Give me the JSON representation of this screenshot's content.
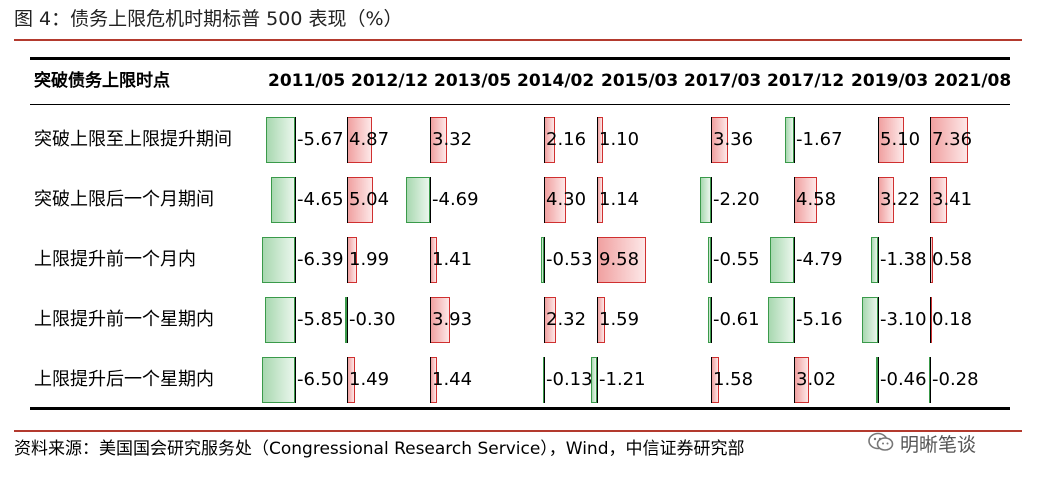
{
  "title": "图 4：债务上限危机时期标普 500 表现（%）",
  "source": "资料来源：美国国会研究服务处（Congressional Research Service），Wind，中信证券研究部",
  "watermark": "明晰笔谈",
  "colors": {
    "positive": "#d03030",
    "negative": "#3a9a4a",
    "rule": "#b33a2e"
  },
  "chart_data": {
    "type": "table",
    "header_label": "突破债务上限时点",
    "columns": [
      "2011/05",
      "2012/12",
      "2013/05",
      "2014/02",
      "2015/03",
      "2017/03",
      "2017/12",
      "2019/03",
      "2021/08"
    ],
    "rows": [
      {
        "label": "突破上限至上限提升期间",
        "values": [
          -5.67,
          4.87,
          3.32,
          2.16,
          1.1,
          3.36,
          -1.67,
          5.1,
          7.36
        ]
      },
      {
        "label": "突破上限后一个月期间",
        "values": [
          -4.65,
          5.04,
          -4.69,
          4.3,
          1.14,
          -2.2,
          4.58,
          3.22,
          3.41
        ]
      },
      {
        "label": "上限提升前一个月内",
        "values": [
          -6.39,
          1.99,
          1.41,
          -0.53,
          9.58,
          -0.55,
          -4.79,
          -1.38,
          0.58
        ]
      },
      {
        "label": "上限提升前一个星期内",
        "values": [
          -5.85,
          -0.3,
          3.93,
          2.32,
          1.59,
          -0.61,
          -5.16,
          -3.1,
          0.18
        ]
      },
      {
        "label": "上限提升后一个星期内",
        "values": [
          -6.5,
          1.49,
          1.44,
          -0.13,
          -1.21,
          1.58,
          3.02,
          -0.46,
          -0.28
        ]
      }
    ]
  }
}
